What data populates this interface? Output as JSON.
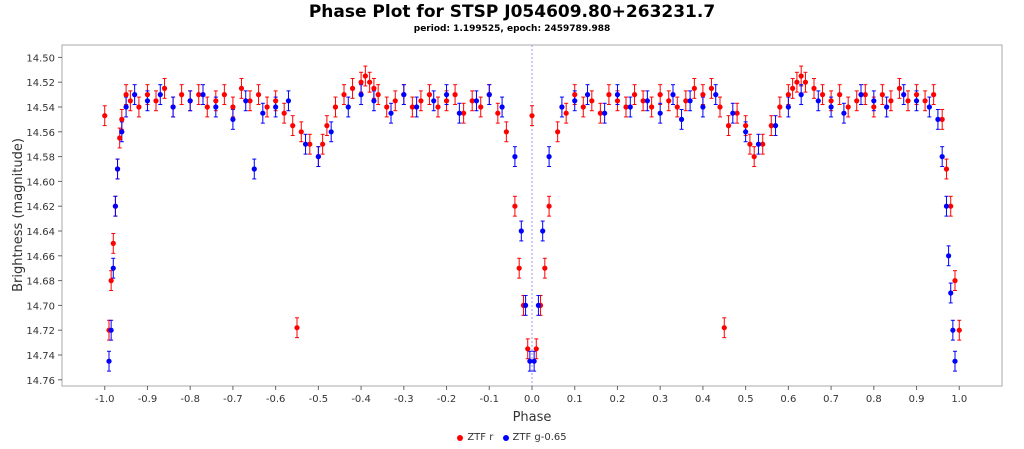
{
  "chart_data": {
    "type": "scatter",
    "title": "Phase Plot for STSP J054609.80+263231.7",
    "subtitle": "period: 1.199525, epoch: 2459789.988",
    "xlabel": "Phase",
    "ylabel": "Brightness (magnitude)",
    "xlim": [
      -1.1,
      1.1
    ],
    "ylim": [
      14.49,
      14.765
    ],
    "y_inverted": true,
    "x_ticks": [
      "-1.0",
      "-0.9",
      "-0.8",
      "-0.7",
      "-0.6",
      "-0.5",
      "-0.4",
      "-0.3",
      "-0.2",
      "-0.1",
      "0.0",
      "0.1",
      "0.2",
      "0.3",
      "0.4",
      "0.5",
      "0.6",
      "0.7",
      "0.8",
      "0.9",
      "1.0"
    ],
    "y_ticks": [
      "14.50",
      "14.52",
      "14.54",
      "14.56",
      "14.58",
      "14.60",
      "14.62",
      "14.64",
      "14.66",
      "14.68",
      "14.70",
      "14.72",
      "14.74",
      "14.76"
    ],
    "x_tick_values": [
      -1.0,
      -0.9,
      -0.8,
      -0.7,
      -0.6,
      -0.5,
      -0.4,
      -0.3,
      -0.2,
      -0.1,
      0.0,
      0.1,
      0.2,
      0.3,
      0.4,
      0.5,
      0.6,
      0.7,
      0.8,
      0.9,
      1.0
    ],
    "y_tick_values": [
      14.5,
      14.52,
      14.54,
      14.56,
      14.58,
      14.6,
      14.62,
      14.64,
      14.66,
      14.68,
      14.7,
      14.72,
      14.74,
      14.76
    ],
    "reference_line_x": 0.0,
    "grid": false,
    "legend_position": "bottom",
    "series": [
      {
        "name": "ZTF r",
        "color": "#ff0000",
        "x": [
          -1.0,
          -0.99,
          -0.985,
          -0.98,
          -0.975,
          -0.97,
          -0.965,
          -0.96,
          -0.95,
          -0.94,
          -0.92,
          -0.9,
          -0.88,
          -0.86,
          -0.84,
          -0.82,
          -0.8,
          -0.78,
          -0.76,
          -0.74,
          -0.72,
          -0.7,
          -0.68,
          -0.66,
          -0.64,
          -0.62,
          -0.6,
          -0.58,
          -0.56,
          -0.55,
          -0.54,
          -0.52,
          -0.5,
          -0.49,
          -0.48,
          -0.46,
          -0.44,
          -0.42,
          -0.4,
          -0.39,
          -0.38,
          -0.37,
          -0.36,
          -0.34,
          -0.32,
          -0.3,
          -0.28,
          -0.26,
          -0.24,
          -0.22,
          -0.2,
          -0.18,
          -0.16,
          -0.14,
          -0.12,
          -0.1,
          -0.08,
          -0.06,
          -0.04,
          -0.03,
          -0.02,
          -0.01,
          0.0,
          0.01,
          0.02,
          0.03,
          0.04,
          0.06,
          0.08,
          0.1,
          0.12,
          0.14,
          0.16,
          0.18,
          0.2,
          0.22,
          0.24,
          0.26,
          0.28,
          0.3,
          0.32,
          0.34,
          0.36,
          0.38,
          0.4,
          0.42,
          0.44,
          0.45,
          0.46,
          0.48,
          0.5,
          0.51,
          0.52,
          0.54,
          0.56,
          0.58,
          0.6,
          0.61,
          0.62,
          0.63,
          0.64,
          0.66,
          0.68,
          0.7,
          0.72,
          0.74,
          0.76,
          0.78,
          0.8,
          0.82,
          0.84,
          0.86,
          0.88,
          0.9,
          0.92,
          0.94,
          0.96,
          0.97,
          0.98,
          0.99,
          1.0
        ],
        "y": [
          14.547,
          14.72,
          14.68,
          14.65,
          14.62,
          14.59,
          14.565,
          14.55,
          14.53,
          14.535,
          14.54,
          14.53,
          14.535,
          14.525,
          14.54,
          14.53,
          14.535,
          14.53,
          14.54,
          14.535,
          14.53,
          14.54,
          14.525,
          14.535,
          14.53,
          14.54,
          14.535,
          14.545,
          14.555,
          14.718,
          14.56,
          14.57,
          14.58,
          14.57,
          14.555,
          14.54,
          14.53,
          14.525,
          14.52,
          14.515,
          14.52,
          14.525,
          14.53,
          14.54,
          14.535,
          14.53,
          14.54,
          14.535,
          14.53,
          14.54,
          14.535,
          14.53,
          14.545,
          14.535,
          14.54,
          14.53,
          14.545,
          14.56,
          14.62,
          14.67,
          14.7,
          14.735,
          14.547,
          14.735,
          14.7,
          14.67,
          14.62,
          14.56,
          14.545,
          14.53,
          14.54,
          14.535,
          14.545,
          14.53,
          14.535,
          14.54,
          14.53,
          14.535,
          14.54,
          14.53,
          14.535,
          14.54,
          14.535,
          14.525,
          14.53,
          14.525,
          14.54,
          14.718,
          14.555,
          14.545,
          14.555,
          14.57,
          14.58,
          14.57,
          14.555,
          14.54,
          14.53,
          14.525,
          14.52,
          14.515,
          14.52,
          14.525,
          14.53,
          14.535,
          14.53,
          14.54,
          14.535,
          14.53,
          14.54,
          14.53,
          14.535,
          14.525,
          14.535,
          14.53,
          14.535,
          14.53,
          14.55,
          14.59,
          14.62,
          14.68,
          14.72
        ]
      },
      {
        "name": "ZTF g-0.65",
        "color": "#0000ff",
        "x": [
          -0.99,
          -0.985,
          -0.98,
          -0.975,
          -0.97,
          -0.96,
          -0.95,
          -0.93,
          -0.9,
          -0.87,
          -0.84,
          -0.8,
          -0.77,
          -0.74,
          -0.7,
          -0.67,
          -0.65,
          -0.63,
          -0.6,
          -0.57,
          -0.53,
          -0.5,
          -0.47,
          -0.43,
          -0.4,
          -0.37,
          -0.33,
          -0.3,
          -0.27,
          -0.23,
          -0.2,
          -0.17,
          -0.13,
          -0.1,
          -0.07,
          -0.04,
          -0.025,
          -0.015,
          -0.005,
          0.005,
          0.015,
          0.025,
          0.04,
          0.07,
          0.1,
          0.13,
          0.17,
          0.2,
          0.23,
          0.27,
          0.3,
          0.33,
          0.35,
          0.37,
          0.4,
          0.43,
          0.47,
          0.5,
          0.53,
          0.57,
          0.6,
          0.63,
          0.67,
          0.7,
          0.73,
          0.77,
          0.8,
          0.83,
          0.87,
          0.9,
          0.93,
          0.95,
          0.96,
          0.97,
          0.975,
          0.98,
          0.985,
          0.99
        ],
        "y": [
          14.745,
          14.72,
          14.67,
          14.62,
          14.59,
          14.56,
          14.54,
          14.53,
          14.535,
          14.53,
          14.54,
          14.535,
          14.53,
          14.54,
          14.55,
          14.535,
          14.59,
          14.545,
          14.54,
          14.535,
          14.57,
          14.58,
          14.56,
          14.54,
          14.53,
          14.535,
          14.545,
          14.53,
          14.54,
          14.535,
          14.53,
          14.545,
          14.535,
          14.53,
          14.54,
          14.58,
          14.64,
          14.7,
          14.745,
          14.745,
          14.7,
          14.64,
          14.58,
          14.54,
          14.535,
          14.53,
          14.545,
          14.53,
          14.54,
          14.535,
          14.545,
          14.53,
          14.55,
          14.535,
          14.54,
          14.53,
          14.545,
          14.56,
          14.57,
          14.555,
          14.54,
          14.53,
          14.535,
          14.54,
          14.545,
          14.53,
          14.535,
          14.54,
          14.53,
          14.535,
          14.54,
          14.55,
          14.58,
          14.62,
          14.66,
          14.69,
          14.72,
          14.745
        ]
      }
    ]
  },
  "legend": {
    "items": [
      {
        "label": "ZTF r",
        "color": "#ff0000"
      },
      {
        "label": "ZTF g-0.65",
        "color": "#0000ff"
      }
    ]
  }
}
